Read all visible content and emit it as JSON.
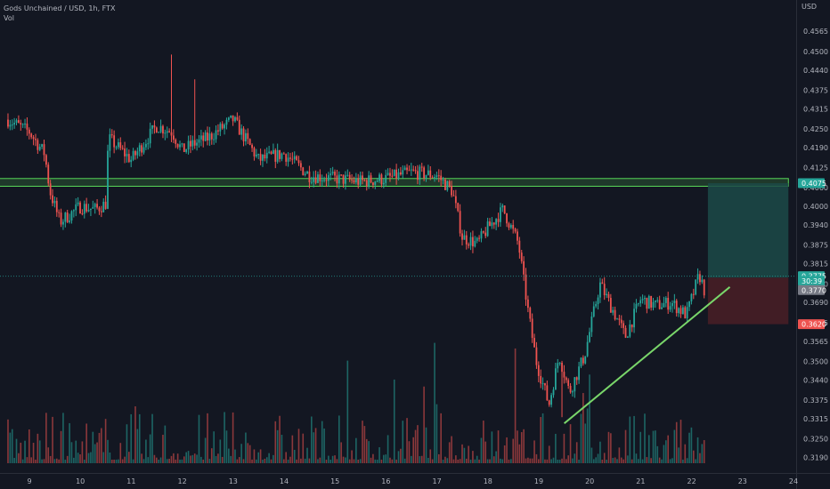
{
  "header": {
    "symbol_line": "Gods Unchained / USD, 1h, FTX",
    "volume_label": "Vol"
  },
  "price_axis": {
    "currency": "USD",
    "ticks": [
      "0.4565",
      "0.4500",
      "0.4440",
      "0.4375",
      "0.4315",
      "0.4250",
      "0.4190",
      "0.4125",
      "0.4060",
      "0.4000",
      "0.3940",
      "0.3875",
      "0.3815",
      "0.3750",
      "0.3690",
      "0.3625",
      "0.3565",
      "0.3500",
      "0.3440",
      "0.3375",
      "0.3315",
      "0.3250",
      "0.3190"
    ],
    "markers": [
      {
        "label": "0.4075",
        "price": 0.4075,
        "color": "#26a69a"
      },
      {
        "label": "0.3775",
        "price": 0.3775,
        "color": "#26a69a"
      },
      {
        "label": "30:39",
        "price": 0.376,
        "color": "#26a69a"
      },
      {
        "label": "0.3770",
        "price": 0.373,
        "color": "#787b86"
      },
      {
        "label": "0.3620",
        "price": 0.362,
        "color": "#ef5350"
      }
    ]
  },
  "time_axis": {
    "ticks": [
      "9",
      "10",
      "11",
      "12",
      "13",
      "14",
      "15",
      "16",
      "17",
      "18",
      "19",
      "20",
      "21",
      "22",
      "23",
      "24"
    ]
  },
  "colors": {
    "background": "#131722",
    "up": "#26a69a",
    "down": "#ef5350",
    "zone_border": "#57d657",
    "trendline": "#79d66a",
    "target_fill": "#1c4a48",
    "stop_fill": "#4a1f26"
  },
  "chart_data": {
    "type": "candlestick",
    "title": "Gods Unchained / USD, 1h, FTX",
    "ylabel": "USD",
    "ylim": [
      0.317,
      0.46
    ],
    "y_scale": "linear",
    "grid": false,
    "series": [
      {
        "name": "Gods Unchained / USD",
        "kind": "price"
      },
      {
        "name": "Vol",
        "kind": "volume"
      }
    ],
    "anchors": [
      [
        8.58,
        0.428
      ],
      [
        9.0,
        0.424
      ],
      [
        9.3,
        0.417
      ],
      [
        9.4,
        0.405
      ],
      [
        9.6,
        0.395
      ],
      [
        10.0,
        0.4
      ],
      [
        10.3,
        0.399
      ],
      [
        10.5,
        0.401
      ],
      [
        10.55,
        0.422
      ],
      [
        11.0,
        0.415
      ],
      [
        11.5,
        0.426
      ],
      [
        11.8,
        0.424
      ],
      [
        12.0,
        0.418
      ],
      [
        12.2,
        0.42
      ],
      [
        12.5,
        0.422
      ],
      [
        13.0,
        0.428
      ],
      [
        13.5,
        0.415
      ],
      [
        14.0,
        0.417
      ],
      [
        14.5,
        0.41
      ],
      [
        15.0,
        0.409
      ],
      [
        15.5,
        0.408
      ],
      [
        16.0,
        0.409
      ],
      [
        16.5,
        0.411
      ],
      [
        17.0,
        0.41
      ],
      [
        17.3,
        0.405
      ],
      [
        17.5,
        0.39
      ],
      [
        17.8,
        0.388
      ],
      [
        18.0,
        0.393
      ],
      [
        18.3,
        0.399
      ],
      [
        18.6,
        0.388
      ],
      [
        18.8,
        0.365
      ],
      [
        18.95,
        0.35
      ],
      [
        19.2,
        0.336
      ],
      [
        19.4,
        0.352
      ],
      [
        19.6,
        0.34
      ],
      [
        19.9,
        0.352
      ],
      [
        20.2,
        0.375
      ],
      [
        20.5,
        0.365
      ],
      [
        20.7,
        0.358
      ],
      [
        21.0,
        0.37
      ],
      [
        21.3,
        0.368
      ],
      [
        21.6,
        0.369
      ],
      [
        21.9,
        0.365
      ],
      [
        22.15,
        0.378
      ],
      [
        22.25,
        0.373
      ]
    ],
    "key_wicks": [
      {
        "time": 11.8,
        "high": 0.449
      },
      {
        "time": 12.25,
        "high": 0.441
      },
      {
        "time": 19.45,
        "low": 0.332
      }
    ],
    "support_resistance_zone": {
      "top": 0.409,
      "bottom": 0.4065,
      "from": 8.0,
      "to": 23.9
    },
    "trendline": {
      "from": [
        19.5,
        0.33
      ],
      "to": [
        22.75,
        0.374
      ]
    },
    "position": {
      "entry": 0.377,
      "target": 0.4075,
      "stop": 0.362,
      "from": 22.32,
      "to": 23.9
    },
    "current_price": 0.3775,
    "countdown": "30:39"
  }
}
